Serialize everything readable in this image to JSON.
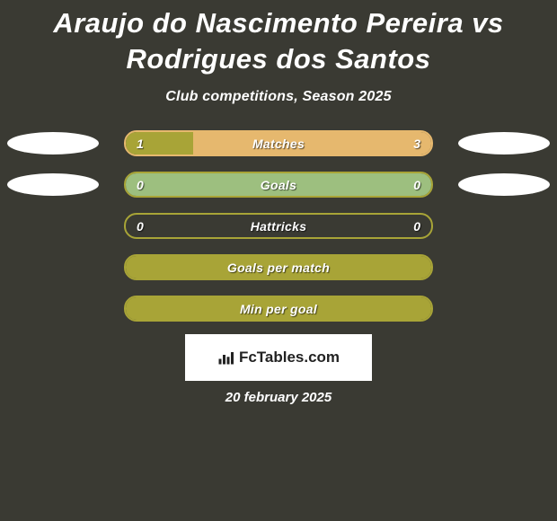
{
  "background_color": "#3a3a33",
  "title": "Araujo do Nascimento Pereira vs Rodrigues dos Santos",
  "title_color": "#ffffff",
  "title_fontsize": 31,
  "subtitle": "Club competitions, Season 2025",
  "subtitle_color": "#ffffff",
  "subtitle_fontsize": 16,
  "oval_base_color": "#ffffff",
  "stats": [
    {
      "label": "Matches",
      "left_val": "1",
      "right_val": "3",
      "left_pct": 22,
      "right_pct": 78,
      "left_fill": "#a8a437",
      "right_fill": "#e6b86e",
      "border_color": "#e6b86e",
      "show_left_oval": true,
      "show_right_oval": true,
      "show_left_val": true,
      "show_right_val": true
    },
    {
      "label": "Goals",
      "left_val": "0",
      "right_val": "0",
      "left_pct": 50,
      "right_pct": 50,
      "left_fill": "#9dbf7f",
      "right_fill": "#9dbf7f",
      "border_color": "#a8a437",
      "show_left_oval": true,
      "show_right_oval": true,
      "show_left_val": true,
      "show_right_val": true
    },
    {
      "label": "Hattricks",
      "left_val": "0",
      "right_val": "0",
      "left_pct": 0,
      "right_pct": 0,
      "left_fill": "#a8a437",
      "right_fill": "#a8a437",
      "border_color": "#a8a437",
      "show_left_oval": false,
      "show_right_oval": false,
      "show_left_val": true,
      "show_right_val": true
    },
    {
      "label": "Goals per match",
      "left_val": "",
      "right_val": "",
      "left_pct": 100,
      "right_pct": 0,
      "left_fill": "#a8a437",
      "right_fill": "#a8a437",
      "border_color": "#a8a437",
      "show_left_oval": false,
      "show_right_oval": false,
      "show_left_val": false,
      "show_right_val": false
    },
    {
      "label": "Min per goal",
      "left_val": "",
      "right_val": "",
      "left_pct": 100,
      "right_pct": 0,
      "left_fill": "#a8a437",
      "right_fill": "#a8a437",
      "border_color": "#a8a437",
      "show_left_oval": false,
      "show_right_oval": false,
      "show_left_val": false,
      "show_right_val": false
    }
  ],
  "logo_text": "FcTables.com",
  "logo_icon_color": "#222222",
  "date": "20 february 2025",
  "date_color": "#ffffff"
}
